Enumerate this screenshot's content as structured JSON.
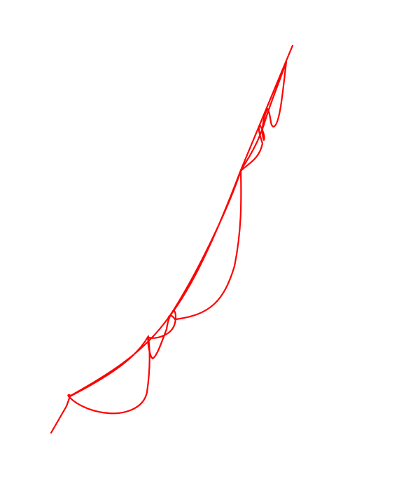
{
  "drawing": {
    "stroke_color": "#ff0000",
    "background_color": "#ffffff",
    "stroke_count": 1
  }
}
